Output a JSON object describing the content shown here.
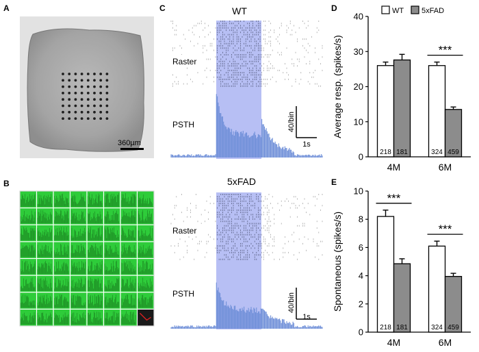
{
  "panels": {
    "a": {
      "letter": "A",
      "scalebar_label": "360µm"
    },
    "b": {
      "letter": "B",
      "grid_rows": 8,
      "grid_cols": 8
    },
    "c": {
      "letter": "C",
      "blocks": [
        {
          "title": "WT",
          "raster_label": "Raster",
          "psth_label": "PSTH",
          "scale_y_label": "40/bin",
          "scale_x_label": "1s"
        },
        {
          "title": "5xFAD",
          "raster_label": "Raster",
          "psth_label": "PSTH",
          "scale_y_label": "40/bin",
          "scale_x_label": "1s"
        }
      ]
    },
    "d": {
      "letter": "D"
    },
    "e": {
      "letter": "E"
    }
  },
  "colors": {
    "grid_green": "#2ecc3a",
    "stim_blue": "#aab4f2",
    "psth_blue": "#6f8fd8",
    "raster_gray": "#9a9a9a",
    "bar_wt": "#ffffff",
    "bar_5xfad": "#8c8c8c",
    "probe_red": "#e02020"
  },
  "chart_data": [
    {
      "type": "bar",
      "panel": "D",
      "categories": [
        "4M",
        "6M"
      ],
      "ylabel": "Average resp. (spikes/s)",
      "ylim": [
        0,
        40
      ],
      "yticks": [
        0,
        10,
        20,
        30,
        40
      ],
      "legend": {
        "position": "top",
        "entries": [
          "WT",
          "5xFAD"
        ]
      },
      "series": [
        {
          "name": "WT",
          "values": [
            26,
            26
          ],
          "errors": [
            1.0,
            1.0
          ],
          "n": [
            "218",
            "324"
          ]
        },
        {
          "name": "5xFAD",
          "values": [
            27.6,
            13.5
          ],
          "errors": [
            1.6,
            0.7
          ],
          "n": [
            "181",
            "459"
          ]
        }
      ],
      "significance": [
        {
          "category": "6M",
          "label": "***"
        }
      ]
    },
    {
      "type": "bar",
      "panel": "E",
      "categories": [
        "4M",
        "6M"
      ],
      "ylabel": "Spontaneous (spikes/s)",
      "ylim": [
        0,
        10
      ],
      "yticks": [
        0,
        2,
        4,
        6,
        8,
        10
      ],
      "series": [
        {
          "name": "WT",
          "values": [
            8.2,
            6.1
          ],
          "errors": [
            0.45,
            0.35
          ],
          "n": [
            "218",
            "324"
          ]
        },
        {
          "name": "5xFAD",
          "values": [
            4.85,
            3.95
          ],
          "errors": [
            0.35,
            0.22
          ],
          "n": [
            "181",
            "459"
          ]
        }
      ],
      "significance": [
        {
          "category": "4M",
          "label": "***"
        },
        {
          "category": "6M",
          "label": "***"
        }
      ]
    }
  ]
}
